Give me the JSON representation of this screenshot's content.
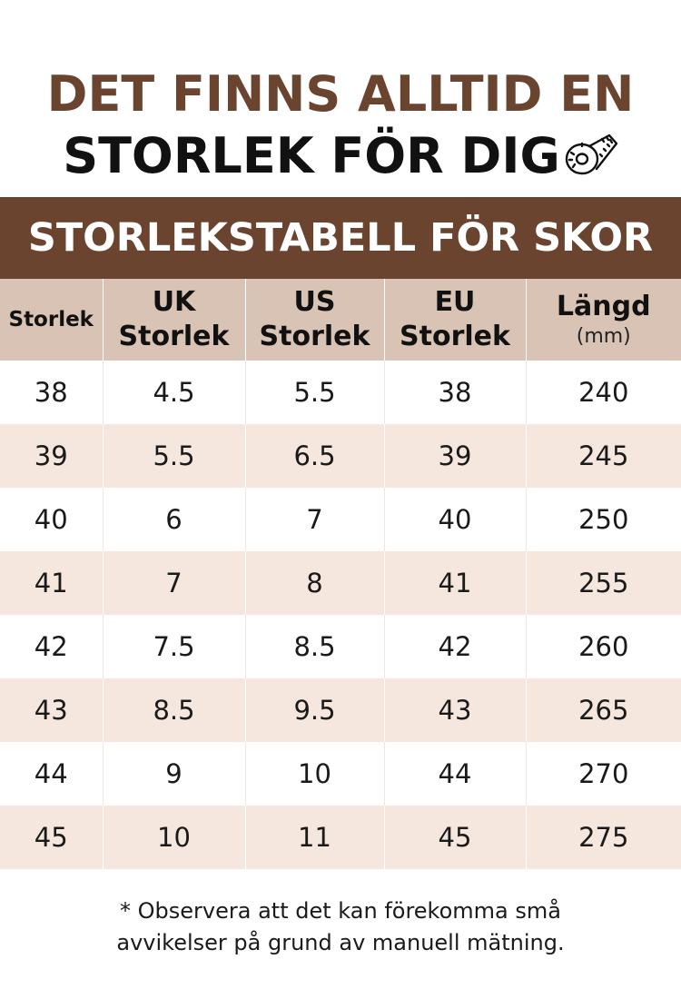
{
  "headline": {
    "line1": "DET FINNS ALLTID EN",
    "line2": "STORLEK FÖR DIG",
    "icon": "measuring-tape-icon"
  },
  "banner": {
    "title": "STORLEKSTABELL FÖR SKOR"
  },
  "table": {
    "headers": [
      {
        "line1": "Storlek",
        "line2": ""
      },
      {
        "line1": "UK",
        "line2": "Storlek"
      },
      {
        "line1": "US",
        "line2": "Storlek"
      },
      {
        "line1": "EU",
        "line2": "Storlek"
      },
      {
        "line1": "Längd",
        "line2": "(mm)"
      }
    ],
    "rows": [
      [
        "38",
        "4.5",
        "5.5",
        "38",
        "240"
      ],
      [
        "39",
        "5.5",
        "6.5",
        "39",
        "245"
      ],
      [
        "40",
        "6",
        "7",
        "40",
        "250"
      ],
      [
        "41",
        "7",
        "8",
        "41",
        "255"
      ],
      [
        "42",
        "7.5",
        "8.5",
        "42",
        "260"
      ],
      [
        "43",
        "8.5",
        "9.5",
        "43",
        "265"
      ],
      [
        "44",
        "9",
        "10",
        "44",
        "270"
      ],
      [
        "45",
        "10",
        "11",
        "45",
        "275"
      ]
    ]
  },
  "footnote": {
    "line1": "* Observera att det kan förekomma små",
    "line2": "avvikelser på grund av manuell mätning."
  },
  "colors": {
    "brown": "#6b4430",
    "header_bg": "#d9c3b5",
    "stripe_bg": "#f5e6de"
  }
}
